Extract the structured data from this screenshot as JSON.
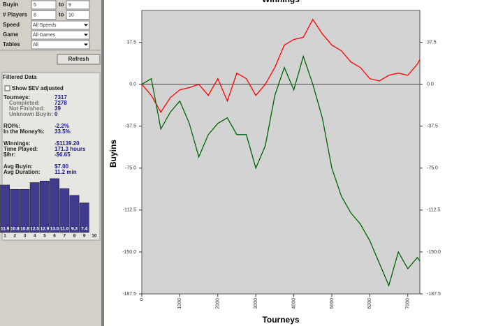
{
  "filters": {
    "ranges": [
      {
        "label": "Buyin",
        "min": "5",
        "sep": "to",
        "max": "9"
      },
      {
        "label": "# Players",
        "min": "8",
        "sep": "to",
        "max": "10"
      }
    ],
    "selects": [
      {
        "label": "Speed",
        "value": "All Speeds"
      },
      {
        "label": "Game",
        "value": "All Games"
      },
      {
        "label": "Tables",
        "value": "All"
      }
    ],
    "button": "Refresh"
  },
  "filtered": {
    "title": "Filtered Data",
    "checkbox": "Show $EV adjusted",
    "groups": [
      [
        {
          "label": "Tourneys:",
          "value": "7317",
          "details": [
            {
              "label": "Completed:",
              "value": "7278"
            },
            {
              "label": "Not Finished:",
              "value": "39"
            },
            {
              "label": "Unknown Buyin:",
              "value": "0"
            }
          ]
        }
      ],
      [
        {
          "label": "ROI%:",
          "value": "-2.2%"
        },
        {
          "label": "In the Money%:",
          "value": "33.5%"
        }
      ],
      [
        {
          "label": "Winnings:",
          "value": "-$1139.20"
        },
        {
          "label": "Time Played:",
          "value": "171.3 hours"
        },
        {
          "label": "$/hr:",
          "value": "-$6.65"
        }
      ],
      [
        {
          "label": "Avg Buyin:",
          "value": "$7.00"
        },
        {
          "label": "Avg Duration:",
          "value": "11.2 min"
        }
      ]
    ]
  },
  "chart_data": [
    {
      "type": "bar",
      "categories": [
        "1",
        "2",
        "3",
        "4",
        "5",
        "6",
        "7",
        "8",
        "9",
        "10"
      ],
      "values": [
        11.9,
        10.8,
        10.8,
        12.5,
        12.9,
        13.5,
        11.0,
        9.3,
        7.4,
        null
      ],
      "value_labels": [
        "11.9",
        "10.8",
        "10.8",
        "12.5",
        "12.9",
        "13.5",
        "11.0",
        "9.3",
        "7.4",
        null
      ],
      "color": "#3f3b8e",
      "ylim": [
        0,
        14
      ]
    },
    {
      "type": "line",
      "title": "Winnings",
      "xlabel": "Tourneys",
      "ylabel": "Buyins",
      "x": [
        0,
        250,
        500,
        750,
        1000,
        1250,
        1500,
        1750,
        2000,
        2250,
        2500,
        2750,
        3000,
        3250,
        3500,
        3750,
        4000,
        4250,
        4500,
        4750,
        5000,
        5250,
        5500,
        5750,
        6000,
        6250,
        6500,
        6750,
        7000,
        7250,
        7317
      ],
      "series": [
        {
          "color": "#ff0000",
          "values": [
            0,
            -10,
            -25,
            -12,
            -5,
            -3,
            0,
            -10,
            5,
            -15,
            10,
            5,
            -10,
            0,
            15,
            35,
            40,
            42,
            58,
            45,
            35,
            30,
            20,
            15,
            5,
            3,
            8,
            10,
            8,
            18,
            22
          ]
        },
        {
          "color": "#006400",
          "values": [
            0,
            5,
            -40,
            -25,
            -15,
            -35,
            -65,
            -45,
            -35,
            -30,
            -45,
            -45,
            -75,
            -55,
            -10,
            15,
            -5,
            25,
            0,
            -30,
            -75,
            -100,
            -115,
            -125,
            -140,
            -160,
            -180,
            -150,
            -165,
            -155,
            -158
          ]
        }
      ],
      "xlim": [
        0,
        7317
      ],
      "ylim": [
        -187.5,
        66
      ],
      "xticks": [
        0,
        1000,
        2000,
        3000,
        4000,
        5000,
        6000,
        7000
      ],
      "yticks": [
        37.5,
        {
          "value": 0,
          "label": "0.0"
        },
        -37.5,
        {
          "value": -75,
          "label": "-75.0"
        },
        -112.5,
        {
          "value": -150,
          "label": "-150.0"
        },
        -187.5
      ],
      "plot_background": "#d3d3d3"
    }
  ]
}
